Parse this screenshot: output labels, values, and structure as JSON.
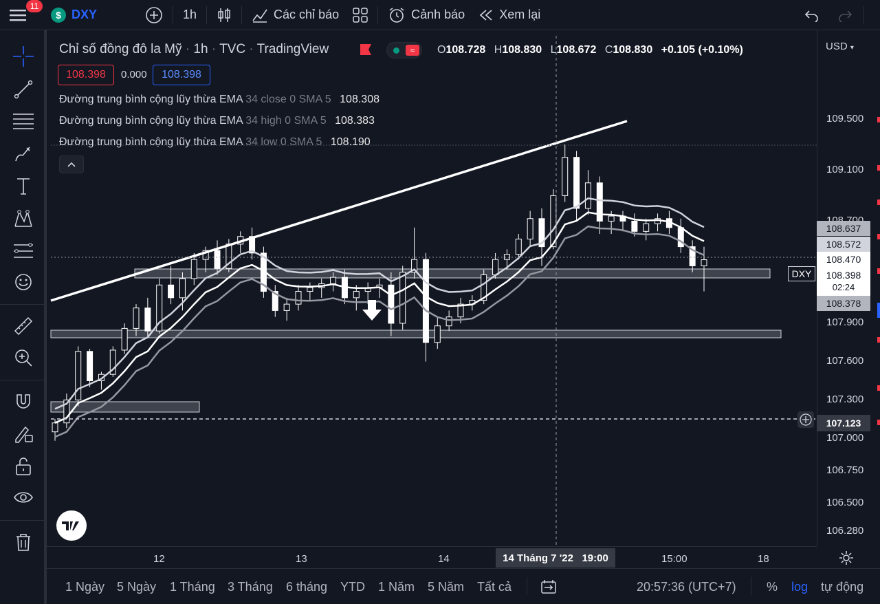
{
  "topbar": {
    "notification_count": "11",
    "symbol": "DXY",
    "symbol_badge": "$",
    "interval": "1h",
    "indicators_label": "Các chỉ báo",
    "alerts_label": "Cảnh báo",
    "replay_label": "Xem lại"
  },
  "legend": {
    "title": "Chỉ số đồng đô la Mỹ",
    "interval": "1h",
    "exchange": "TVC",
    "source": "TradingView",
    "open_label": "O",
    "open": "108.728",
    "high_label": "H",
    "high": "108.830",
    "low_label": "L",
    "low": "108.672",
    "close_label": "C",
    "close": "108.830",
    "change": "+0.105 (+0.10%)",
    "bid": "108.398",
    "spread": "0.000",
    "ask": "108.398",
    "indicators": [
      {
        "name": "Đường trung bình cộng lũy thừa EMA",
        "params": "34 close 0 SMA 5",
        "value": "108.308"
      },
      {
        "name": "Đường trung bình cộng lũy thừa EMA",
        "params": "34 high 0 SMA 5",
        "value": "108.383"
      },
      {
        "name": "Đường trung bình cộng lũy thừa EMA",
        "params": "34 low 0 SMA 5",
        "value": "108.190"
      }
    ]
  },
  "price_axis": {
    "currency": "USD",
    "ticks": [
      "109.500",
      "109.100",
      "108.700",
      "107.900",
      "107.600",
      "107.300",
      "107.000",
      "106.750",
      "106.500",
      "106.280"
    ],
    "tags": {
      "ema_high": "108.637",
      "ema_close": "108.572",
      "crosshair_price": "108.470",
      "last_price": "108.398",
      "countdown": "02:24",
      "ema_low": "108.378",
      "cursor_price": "107.123",
      "symbol_tag": "DXY"
    }
  },
  "time_axis": {
    "ticks": [
      "12",
      "13",
      "14",
      "15:00",
      "18"
    ],
    "crosshair_label": "14 Tháng 7 '22   19:00"
  },
  "bottombar": {
    "ranges": [
      "1 Ngày",
      "5 Ngày",
      "1 Tháng",
      "3 Tháng",
      "6 tháng",
      "YTD",
      "1 Năm",
      "5 Năm",
      "Tất cả"
    ],
    "clock": "20:57:36 (UTC+7)",
    "percent_label": "%",
    "log_label": "log",
    "auto_label": "tự động"
  },
  "colors": {
    "background": "#131722",
    "accent": "#2962ff",
    "down": "#f23645",
    "up": "#089981",
    "candle": "#ffffff"
  },
  "chart_data": {
    "type": "candlestick",
    "price_ticks": [
      109.5,
      109.1,
      108.7,
      107.9,
      107.6,
      107.3,
      107.0,
      106.75,
      106.5,
      106.28
    ],
    "x_ticks": [
      "12",
      "13",
      "14",
      "15:00",
      "18"
    ],
    "candles_ohlc": [
      [
        107.05,
        107.15,
        106.98,
        107.12
      ],
      [
        107.12,
        107.35,
        107.08,
        107.3
      ],
      [
        107.3,
        107.72,
        107.25,
        107.68
      ],
      [
        107.68,
        107.7,
        107.4,
        107.45
      ],
      [
        107.45,
        107.52,
        107.38,
        107.5
      ],
      [
        107.5,
        107.72,
        107.48,
        107.69
      ],
      [
        107.69,
        107.9,
        107.66,
        107.86
      ],
      [
        107.86,
        108.05,
        107.8,
        108.02
      ],
      [
        108.02,
        108.1,
        107.8,
        107.84
      ],
      [
        107.84,
        108.25,
        107.82,
        108.2
      ],
      [
        108.2,
        108.35,
        108.05,
        108.1
      ],
      [
        108.1,
        108.3,
        108.0,
        108.25
      ],
      [
        108.25,
        108.45,
        108.2,
        108.4
      ],
      [
        108.4,
        108.5,
        108.3,
        108.47
      ],
      [
        108.47,
        108.55,
        108.28,
        108.33
      ],
      [
        108.33,
        108.56,
        108.3,
        108.52
      ],
      [
        108.52,
        108.62,
        108.45,
        108.58
      ],
      [
        108.58,
        108.65,
        108.4,
        108.45
      ],
      [
        108.45,
        108.5,
        108.1,
        108.15
      ],
      [
        108.15,
        108.2,
        107.95,
        108.0
      ],
      [
        108.0,
        108.1,
        107.92,
        108.05
      ],
      [
        108.05,
        108.2,
        108.0,
        108.15
      ],
      [
        108.15,
        108.22,
        108.08,
        108.18
      ],
      [
        108.18,
        108.25,
        108.1,
        108.21
      ],
      [
        108.21,
        108.3,
        108.15,
        108.26
      ],
      [
        108.26,
        108.32,
        108.05,
        108.1
      ],
      [
        108.1,
        108.2,
        108.0,
        108.15
      ],
      [
        108.15,
        108.22,
        108.05,
        108.18
      ],
      [
        108.18,
        108.25,
        108.1,
        108.2
      ],
      [
        108.2,
        108.3,
        107.8,
        107.9
      ],
      [
        107.9,
        108.35,
        107.85,
        108.3
      ],
      [
        108.3,
        108.65,
        108.25,
        108.4
      ],
      [
        108.4,
        108.45,
        107.6,
        107.75
      ],
      [
        107.75,
        107.95,
        107.7,
        107.88
      ],
      [
        107.88,
        108.0,
        107.84,
        107.95
      ],
      [
        107.95,
        108.1,
        107.9,
        108.05
      ],
      [
        108.05,
        108.12,
        108.0,
        108.08
      ],
      [
        108.08,
        108.32,
        108.05,
        108.28
      ],
      [
        108.28,
        108.45,
        108.25,
        108.4
      ],
      [
        108.4,
        108.48,
        108.32,
        108.44
      ],
      [
        108.44,
        108.6,
        108.4,
        108.56
      ],
      [
        108.56,
        108.78,
        108.5,
        108.72
      ],
      [
        108.72,
        108.8,
        108.35,
        108.5
      ],
      [
        108.5,
        108.95,
        108.48,
        108.9
      ],
      [
        108.9,
        109.3,
        108.85,
        109.2
      ],
      [
        109.2,
        109.25,
        108.7,
        108.8
      ],
      [
        108.8,
        109.1,
        108.75,
        109.0
      ],
      [
        109.0,
        109.05,
        108.6,
        108.7
      ],
      [
        108.7,
        108.78,
        108.6,
        108.74
      ],
      [
        108.74,
        108.78,
        108.62,
        108.7
      ],
      [
        108.7,
        108.76,
        108.58,
        108.62
      ],
      [
        108.62,
        108.72,
        108.55,
        108.68
      ],
      [
        108.68,
        108.76,
        108.62,
        108.72
      ],
      [
        108.72,
        108.78,
        108.6,
        108.65
      ],
      [
        108.65,
        108.72,
        108.45,
        108.5
      ],
      [
        108.5,
        108.55,
        108.3,
        108.35
      ],
      [
        108.35,
        108.5,
        108.15,
        108.398
      ]
    ]
  }
}
